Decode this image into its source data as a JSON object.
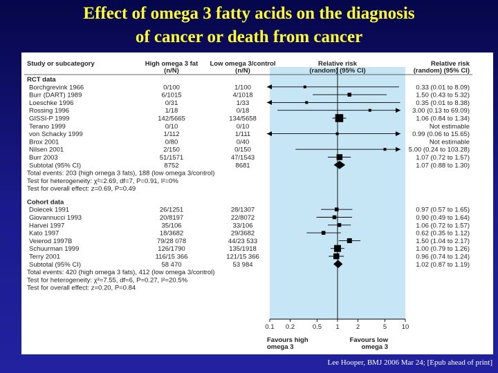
{
  "slide": {
    "title_line1": "Effect of omega 3 fatty acids on the diagnosis",
    "title_line2": "of cancer or death from cancer",
    "footer": "Lee Hooper, BMJ  2006 Mar 24; [Epub ahead of print]",
    "background_color": "#1a1a8c",
    "title_color": "#ffff33",
    "shade_color": "#c6e6f5"
  },
  "chart_data": {
    "type": "forest",
    "headers": {
      "study": "Study or subcategory",
      "high1": "High omega 3 fat",
      "high2": "(n/N)",
      "low1": "Low omega 3/control",
      "low2": "(n/N)",
      "rr1": "Relative risk",
      "rr2": "(random) (95% CI)",
      "rrt1": "Relative risk",
      "rrt2": "(random) (95% CI)"
    },
    "x_ticks": [
      0.1,
      0.2,
      0.5,
      1,
      2,
      5,
      10
    ],
    "x_tick_labels": [
      "0.1",
      "0.2",
      "0.5",
      "1",
      "2",
      "5",
      "10"
    ],
    "xlim": [
      0.1,
      10
    ],
    "scale": "log",
    "favours_left1": "Favours high",
    "favours_left2": "omega 3",
    "favours_right1": "Favours low",
    "favours_right2": "omega 3",
    "groups": [
      {
        "label": "RCT data",
        "studies": [
          {
            "name": "Borchgrevink 1966",
            "high": "0/100",
            "low": "1/100",
            "rr": 0.33,
            "lo": 0.01,
            "hi": 8.09,
            "text": "0.33 (0.01 to 8.09)",
            "w": 1
          },
          {
            "name": "Burr (DART) 1989",
            "high": "6/1015",
            "low": "4/1018",
            "rr": 1.5,
            "lo": 0.43,
            "hi": 5.32,
            "text": "1.50 (0.43 to 5.32)",
            "w": 2
          },
          {
            "name": "Loeschke 1996",
            "high": "0/31",
            "low": "1/33",
            "rr": 0.35,
            "lo": 0.01,
            "hi": 8.38,
            "text": "0.35 (0.01 to 8.38)",
            "w": 1
          },
          {
            "name": "Rossing 1996",
            "high": "1/18",
            "low": "0/18",
            "rr": 3.0,
            "lo": 0.13,
            "hi": 69.09,
            "text": "3.00 (0.13 to 69.09)",
            "w": 1
          },
          {
            "name": "GISSI-P 1999",
            "high": "142/5665",
            "low": "134/5658",
            "rr": 1.06,
            "lo": 0.84,
            "hi": 1.34,
            "text": "1.06 (0.84 to 1.34)",
            "w": 6
          },
          {
            "name": "Terano 1999",
            "high": "0/10",
            "low": "0/10",
            "rr": null,
            "lo": null,
            "hi": null,
            "text": "Not estimable",
            "w": 0
          },
          {
            "name": "von Schacky 1999",
            "high": "1/112",
            "low": "1/111",
            "rr": 0.99,
            "lo": 0.06,
            "hi": 15.65,
            "text": "0.99 (0.06 to 15.65)",
            "w": 1
          },
          {
            "name": "Brox 2001",
            "high": "0/80",
            "low": "0/40",
            "rr": null,
            "lo": null,
            "hi": null,
            "text": "Not estimable",
            "w": 0
          },
          {
            "name": "Nilsen 2001",
            "high": "2/150",
            "low": "0/150",
            "rr": 5.0,
            "lo": 0.24,
            "hi": 103.28,
            "text": "5.00 (0.24 to 103.28)",
            "w": 1
          },
          {
            "name": "Burr 2003",
            "high": "51/1571",
            "low": "47/1543",
            "rr": 1.07,
            "lo": 0.72,
            "hi": 1.57,
            "text": "1.07 (0.72 to 1.57)",
            "w": 4
          }
        ],
        "subtotal": {
          "name": "Subtotal (95% CI)",
          "high": "8752",
          "low": "8681",
          "rr": 1.07,
          "lo": 0.88,
          "hi": 1.3,
          "text": "1.07 (0.88 to 1.30)"
        },
        "notes": [
          "Total events: 203 (high omega 3 fats), 188 (low omega 3/control)",
          "Test for heterogeneity: χ²=2.69, df=7, P=0.91, I²=0%",
          "Test for overall effect: z=0.69, P=0.49"
        ]
      },
      {
        "label": "Cohort data",
        "studies": [
          {
            "name": "Dolecek 1991",
            "high": "26/1251",
            "low": "28/1307",
            "rr": 0.97,
            "lo": 0.57,
            "hi": 1.65,
            "text": "0.97 (0.57 to 1.65)",
            "w": 2
          },
          {
            "name": "Giovannucci 1993",
            "high": "20/8197",
            "low": "22/8072",
            "rr": 0.9,
            "lo": 0.49,
            "hi": 1.64,
            "text": "0.90 (0.49 to 1.64)",
            "w": 2
          },
          {
            "name": "Harvei 1997",
            "high": "35/106",
            "low": "33/106",
            "rr": 1.06,
            "lo": 0.72,
            "hi": 1.57,
            "text": "1.06 (0.72 to 1.57)",
            "w": 2
          },
          {
            "name": "Kato 1997",
            "high": "18/3682",
            "low": "29/3682",
            "rr": 0.62,
            "lo": 0.35,
            "hi": 1.12,
            "text": "0.62 (0.35 to 1.12)",
            "w": 2
          },
          {
            "name": "Veierod 1997B",
            "high": "79/28 078",
            "low": "44/23 533",
            "rr": 1.5,
            "lo": 1.04,
            "hi": 2.17,
            "text": "1.50 (1.04 to 2.17)",
            "w": 3
          },
          {
            "name": "Schuurman 1999",
            "high": "126/1790",
            "low": "135/1918",
            "rr": 1.0,
            "lo": 0.79,
            "hi": 1.26,
            "text": "1.00 (0.79 to 1.26)",
            "w": 5
          },
          {
            "name": "Terry 2001",
            "high": "116/15 366",
            "low": "121/15 366",
            "rr": 0.96,
            "lo": 0.74,
            "hi": 1.24,
            "text": "0.96 (0.74 to 1.24)",
            "w": 4
          }
        ],
        "subtotal": {
          "name": "Subtotal (95% CI)",
          "high": "58 470",
          "low": "53 984",
          "rr": 1.02,
          "lo": 0.87,
          "hi": 1.19,
          "text": "1.02 (0.87 to 1.19)"
        },
        "notes": [
          "Total events: 420 (high omega 3 fats), 412 (low omega 3/control)",
          "Test for heterogeneity: χ²=7.55, df=6, P=0.27, I²=20.5%",
          "Test for overall effect: z=0.20, P=0.84"
        ]
      }
    ]
  }
}
